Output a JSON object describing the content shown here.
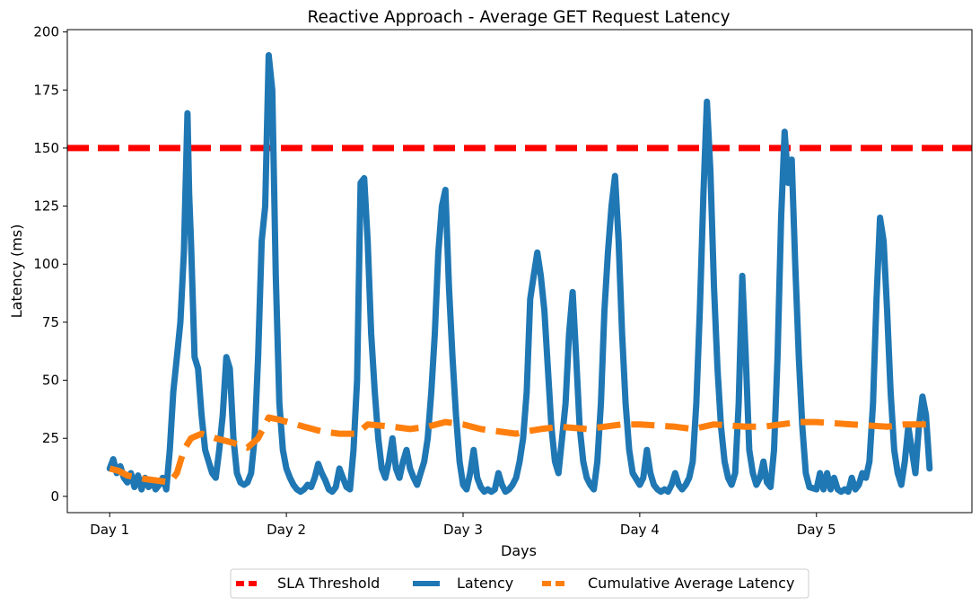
{
  "chart_data": {
    "type": "line",
    "title": "Reactive Approach - Average GET Request Latency",
    "xlabel": "Days",
    "ylabel": "Latency (ms)",
    "xlim": [
      0.76,
      5.88
    ],
    "ylim": [
      -7,
      201
    ],
    "x_ticks": [
      1,
      2,
      3,
      4,
      5
    ],
    "x_tick_labels": [
      "Day 1",
      "Day 2",
      "Day 3",
      "Day 4",
      "Day 5"
    ],
    "y_ticks": [
      0,
      25,
      50,
      75,
      100,
      125,
      150,
      175,
      200
    ],
    "grid": false,
    "legend": {
      "placement": "below-center",
      "columns": 3
    },
    "sla_threshold": {
      "name": "SLA Threshold",
      "value": 150,
      "color": "#ff0000",
      "style": "dashed"
    },
    "series": [
      {
        "name": "Latency",
        "color": "#1f77b4",
        "style": "solid",
        "points": [
          [
            1.0,
            12
          ],
          [
            1.02,
            16
          ],
          [
            1.04,
            10
          ],
          [
            1.06,
            13
          ],
          [
            1.08,
            8
          ],
          [
            1.1,
            6
          ],
          [
            1.12,
            10
          ],
          [
            1.14,
            4
          ],
          [
            1.16,
            9
          ],
          [
            1.18,
            3
          ],
          [
            1.2,
            8
          ],
          [
            1.22,
            4
          ],
          [
            1.24,
            7
          ],
          [
            1.26,
            3
          ],
          [
            1.28,
            5
          ],
          [
            1.3,
            8
          ],
          [
            1.32,
            3
          ],
          [
            1.34,
            20
          ],
          [
            1.36,
            45
          ],
          [
            1.38,
            60
          ],
          [
            1.4,
            75
          ],
          [
            1.42,
            105
          ],
          [
            1.44,
            165
          ],
          [
            1.45,
            130
          ],
          [
            1.46,
            110
          ],
          [
            1.48,
            60
          ],
          [
            1.5,
            55
          ],
          [
            1.52,
            35
          ],
          [
            1.54,
            20
          ],
          [
            1.56,
            15
          ],
          [
            1.58,
            10
          ],
          [
            1.6,
            8
          ],
          [
            1.62,
            20
          ],
          [
            1.64,
            35
          ],
          [
            1.66,
            60
          ],
          [
            1.68,
            55
          ],
          [
            1.7,
            25
          ],
          [
            1.72,
            10
          ],
          [
            1.74,
            6
          ],
          [
            1.76,
            5
          ],
          [
            1.78,
            6
          ],
          [
            1.8,
            10
          ],
          [
            1.82,
            25
          ],
          [
            1.84,
            60
          ],
          [
            1.86,
            110
          ],
          [
            1.88,
            125
          ],
          [
            1.9,
            190
          ],
          [
            1.92,
            175
          ],
          [
            1.94,
            95
          ],
          [
            1.96,
            40
          ],
          [
            1.98,
            20
          ],
          [
            2.0,
            12
          ],
          [
            2.02,
            8
          ],
          [
            2.04,
            5
          ],
          [
            2.06,
            3
          ],
          [
            2.08,
            2
          ],
          [
            2.1,
            3
          ],
          [
            2.12,
            5
          ],
          [
            2.14,
            4
          ],
          [
            2.16,
            8
          ],
          [
            2.18,
            14
          ],
          [
            2.2,
            10
          ],
          [
            2.22,
            7
          ],
          [
            2.24,
            3
          ],
          [
            2.26,
            2
          ],
          [
            2.28,
            4
          ],
          [
            2.3,
            12
          ],
          [
            2.32,
            8
          ],
          [
            2.34,
            4
          ],
          [
            2.36,
            3
          ],
          [
            2.38,
            20
          ],
          [
            2.4,
            50
          ],
          [
            2.42,
            135
          ],
          [
            2.44,
            137
          ],
          [
            2.46,
            110
          ],
          [
            2.48,
            70
          ],
          [
            2.5,
            45
          ],
          [
            2.52,
            25
          ],
          [
            2.54,
            12
          ],
          [
            2.56,
            8
          ],
          [
            2.58,
            15
          ],
          [
            2.6,
            25
          ],
          [
            2.62,
            12
          ],
          [
            2.64,
            8
          ],
          [
            2.66,
            15
          ],
          [
            2.68,
            20
          ],
          [
            2.7,
            12
          ],
          [
            2.72,
            8
          ],
          [
            2.74,
            5
          ],
          [
            2.76,
            10
          ],
          [
            2.78,
            15
          ],
          [
            2.8,
            25
          ],
          [
            2.82,
            45
          ],
          [
            2.84,
            70
          ],
          [
            2.86,
            105
          ],
          [
            2.88,
            125
          ],
          [
            2.9,
            132
          ],
          [
            2.92,
            90
          ],
          [
            2.94,
            60
          ],
          [
            2.96,
            35
          ],
          [
            2.98,
            15
          ],
          [
            3.0,
            5
          ],
          [
            3.02,
            3
          ],
          [
            3.04,
            10
          ],
          [
            3.06,
            20
          ],
          [
            3.08,
            8
          ],
          [
            3.1,
            4
          ],
          [
            3.12,
            2
          ],
          [
            3.14,
            3
          ],
          [
            3.16,
            2
          ],
          [
            3.18,
            3
          ],
          [
            3.2,
            10
          ],
          [
            3.22,
            5
          ],
          [
            3.24,
            2
          ],
          [
            3.26,
            3
          ],
          [
            3.28,
            5
          ],
          [
            3.3,
            8
          ],
          [
            3.32,
            15
          ],
          [
            3.34,
            25
          ],
          [
            3.36,
            45
          ],
          [
            3.38,
            85
          ],
          [
            3.4,
            95
          ],
          [
            3.42,
            105
          ],
          [
            3.44,
            95
          ],
          [
            3.46,
            80
          ],
          [
            3.48,
            55
          ],
          [
            3.5,
            30
          ],
          [
            3.52,
            15
          ],
          [
            3.54,
            10
          ],
          [
            3.56,
            25
          ],
          [
            3.58,
            40
          ],
          [
            3.6,
            70
          ],
          [
            3.62,
            88
          ],
          [
            3.64,
            60
          ],
          [
            3.66,
            30
          ],
          [
            3.68,
            15
          ],
          [
            3.7,
            8
          ],
          [
            3.72,
            5
          ],
          [
            3.74,
            3
          ],
          [
            3.76,
            15
          ],
          [
            3.78,
            40
          ],
          [
            3.8,
            80
          ],
          [
            3.82,
            105
          ],
          [
            3.84,
            125
          ],
          [
            3.86,
            138
          ],
          [
            3.88,
            110
          ],
          [
            3.9,
            70
          ],
          [
            3.92,
            40
          ],
          [
            3.94,
            20
          ],
          [
            3.96,
            10
          ],
          [
            4.0,
            5
          ],
          [
            4.02,
            8
          ],
          [
            4.04,
            20
          ],
          [
            4.06,
            10
          ],
          [
            4.08,
            5
          ],
          [
            4.1,
            3
          ],
          [
            4.12,
            2
          ],
          [
            4.14,
            3
          ],
          [
            4.16,
            2
          ],
          [
            4.18,
            5
          ],
          [
            4.2,
            10
          ],
          [
            4.22,
            5
          ],
          [
            4.24,
            3
          ],
          [
            4.26,
            5
          ],
          [
            4.28,
            8
          ],
          [
            4.3,
            15
          ],
          [
            4.32,
            40
          ],
          [
            4.34,
            80
          ],
          [
            4.36,
            130
          ],
          [
            4.38,
            170
          ],
          [
            4.4,
            140
          ],
          [
            4.42,
            90
          ],
          [
            4.44,
            55
          ],
          [
            4.46,
            30
          ],
          [
            4.48,
            15
          ],
          [
            4.5,
            8
          ],
          [
            4.52,
            5
          ],
          [
            4.54,
            10
          ],
          [
            4.56,
            40
          ],
          [
            4.58,
            95
          ],
          [
            4.6,
            60
          ],
          [
            4.62,
            20
          ],
          [
            4.64,
            10
          ],
          [
            4.66,
            5
          ],
          [
            4.68,
            8
          ],
          [
            4.7,
            15
          ],
          [
            4.72,
            6
          ],
          [
            4.74,
            4
          ],
          [
            4.76,
            20
          ],
          [
            4.78,
            60
          ],
          [
            4.8,
            120
          ],
          [
            4.82,
            157
          ],
          [
            4.84,
            135
          ],
          [
            4.86,
            145
          ],
          [
            4.88,
            100
          ],
          [
            4.9,
            60
          ],
          [
            4.92,
            30
          ],
          [
            4.94,
            10
          ],
          [
            4.96,
            4
          ],
          [
            5.0,
            3
          ],
          [
            5.02,
            10
          ],
          [
            5.04,
            3
          ],
          [
            5.06,
            10
          ],
          [
            5.08,
            3
          ],
          [
            5.1,
            8
          ],
          [
            5.12,
            3
          ],
          [
            5.14,
            2
          ],
          [
            5.16,
            3
          ],
          [
            5.18,
            2
          ],
          [
            5.2,
            8
          ],
          [
            5.22,
            3
          ],
          [
            5.24,
            5
          ],
          [
            5.26,
            10
          ],
          [
            5.28,
            8
          ],
          [
            5.3,
            15
          ],
          [
            5.32,
            40
          ],
          [
            5.34,
            85
          ],
          [
            5.36,
            120
          ],
          [
            5.38,
            110
          ],
          [
            5.4,
            80
          ],
          [
            5.42,
            45
          ],
          [
            5.44,
            20
          ],
          [
            5.46,
            10
          ],
          [
            5.48,
            5
          ],
          [
            5.5,
            15
          ],
          [
            5.52,
            30
          ],
          [
            5.54,
            20
          ],
          [
            5.56,
            10
          ],
          [
            5.58,
            30
          ],
          [
            5.6,
            43
          ],
          [
            5.62,
            35
          ],
          [
            5.64,
            12
          ]
        ]
      },
      {
        "name": "Cumulative Average Latency",
        "color": "#ff7f0e",
        "style": "dashed",
        "points": [
          [
            1.0,
            12
          ],
          [
            1.05,
            11
          ],
          [
            1.1,
            9
          ],
          [
            1.2,
            7.5
          ],
          [
            1.3,
            6.5
          ],
          [
            1.34,
            6
          ],
          [
            1.38,
            10
          ],
          [
            1.42,
            20
          ],
          [
            1.46,
            25
          ],
          [
            1.52,
            27
          ],
          [
            1.6,
            25
          ],
          [
            1.7,
            23
          ],
          [
            1.78,
            21
          ],
          [
            1.84,
            25
          ],
          [
            1.9,
            34
          ],
          [
            1.96,
            33
          ],
          [
            2.1,
            30
          ],
          [
            2.2,
            28
          ],
          [
            2.3,
            27
          ],
          [
            2.4,
            27
          ],
          [
            2.46,
            31
          ],
          [
            2.6,
            30
          ],
          [
            2.7,
            29
          ],
          [
            2.8,
            30
          ],
          [
            2.9,
            32
          ],
          [
            3.0,
            31
          ],
          [
            3.1,
            29
          ],
          [
            3.2,
            28
          ],
          [
            3.3,
            27
          ],
          [
            3.36,
            28
          ],
          [
            3.44,
            29
          ],
          [
            3.55,
            30
          ],
          [
            3.7,
            29
          ],
          [
            3.8,
            30
          ],
          [
            3.9,
            31
          ],
          [
            4.0,
            31
          ],
          [
            4.2,
            30
          ],
          [
            4.3,
            29
          ],
          [
            4.36,
            30
          ],
          [
            4.42,
            31
          ],
          [
            4.6,
            30
          ],
          [
            4.7,
            30
          ],
          [
            4.8,
            31
          ],
          [
            4.9,
            32
          ],
          [
            5.0,
            32
          ],
          [
            5.2,
            31
          ],
          [
            5.4,
            30
          ],
          [
            5.5,
            31
          ],
          [
            5.64,
            31
          ]
        ]
      }
    ]
  }
}
